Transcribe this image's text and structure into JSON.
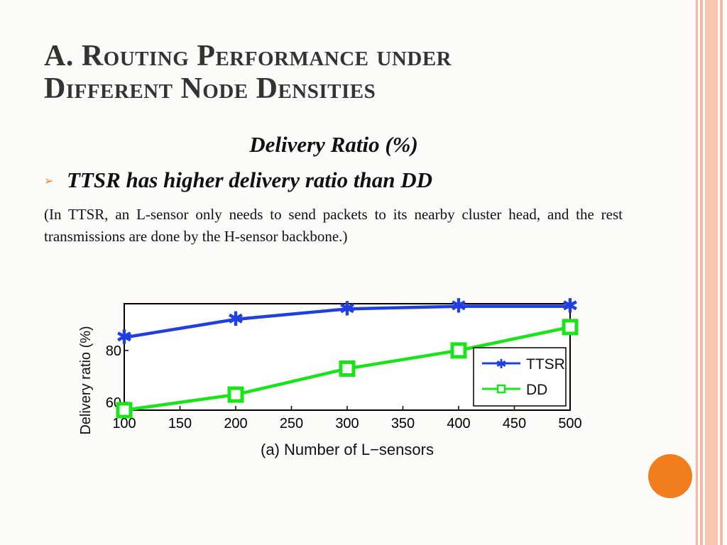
{
  "title_lines": [
    "A. Routing Performance under",
    "Different Node Densities"
  ],
  "subtitle": "Delivery Ratio (%)",
  "bullet": {
    "icon": "arrow-bullet-icon",
    "text": "TTSR has higher delivery ratio than DD"
  },
  "paragraph": "(In TTSR, an L-sensor only needs to send packets to its nearby cluster head, and the rest transmissions are done by the H-sensor backbone.)",
  "colors": {
    "accent": "#f27d1d",
    "ttsr": "#1f3fe0",
    "dd": "#19e319",
    "border": "#f3b9a2"
  },
  "chart_data": {
    "type": "line",
    "x": [
      100,
      200,
      300,
      400,
      500
    ],
    "xlim": [
      100,
      500
    ],
    "ylim": [
      57,
      98
    ],
    "xticks": [
      "100",
      "150",
      "200",
      "250",
      "300",
      "350",
      "400",
      "450",
      "500"
    ],
    "yticks": [
      "60",
      "80"
    ],
    "xlabel": "(a) Number of L−sensors",
    "ylabel": "Delivery ratio (%)",
    "legend_position": "lower-right",
    "grid": false,
    "series": [
      {
        "name": "TTSR",
        "values": [
          85,
          92,
          96,
          97,
          97
        ],
        "color": "#1f3fe0",
        "marker": "star"
      },
      {
        "name": "DD",
        "values": [
          57,
          63,
          73,
          80,
          89
        ],
        "color": "#19e319",
        "marker": "square"
      }
    ]
  }
}
